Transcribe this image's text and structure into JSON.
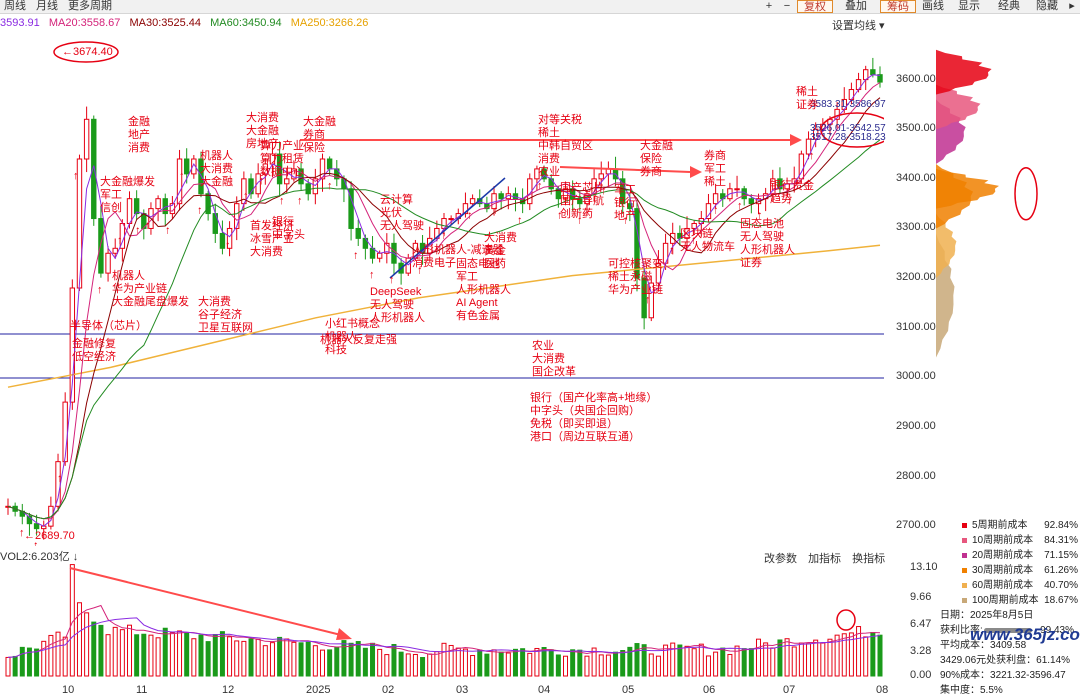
{
  "toolbar": {
    "tabs": [
      "周线",
      "月线",
      "更多周期"
    ],
    "buttons": [
      "复权",
      "叠加",
      "筹码",
      "画线",
      "显示",
      "经典",
      "隐藏"
    ],
    "highlighted": [
      "复权",
      "筹码"
    ]
  },
  "ma_legend": {
    "items": [
      {
        "text": "3593.91",
        "color": "#8a2be2"
      },
      {
        "text": "MA20:3558.67",
        "color": "#d4237a"
      },
      {
        "text": "MA30:3525.44",
        "color": "#8b0000"
      },
      {
        "text": "MA60:3450.94",
        "color": "#228b22"
      },
      {
        "text": "MA250:3266.26",
        "color": "#e6a100"
      }
    ],
    "settings_label": "设置均线"
  },
  "volume_panel": {
    "label": "VOL2:6.203亿",
    "tools": [
      "改参数",
      "加指标",
      "换指标"
    ],
    "y_ticks": [
      "13.10",
      "9.66",
      "6.47",
      "3.28",
      "0.00"
    ]
  },
  "chip_legend": [
    {
      "label": "5周期前成本",
      "pct": "92.84%",
      "color": "#e60012"
    },
    {
      "label": "10周期前成本",
      "pct": "84.31%",
      "color": "#e7577e"
    },
    {
      "label": "20周期前成本",
      "pct": "71.15%",
      "color": "#c03090"
    },
    {
      "label": "30周期前成本",
      "pct": "61.26%",
      "color": "#f08000"
    },
    {
      "label": "60周期前成本",
      "pct": "40.70%",
      "color": "#f0b050"
    },
    {
      "label": "100周期前成本",
      "pct": "18.67%",
      "color": "#c8a878"
    }
  ],
  "info_panel": {
    "date": "日期：2025年8月5日",
    "profit_ratio_label": "获利比率:",
    "profit_ratio": "99.43%",
    "avg_cost": "平均成本：3409.58",
    "profit_at": "3429.06元处获利盘：61.14%",
    "cost90": "90%成本：3221.32-3596.47",
    "concentration": "集中度：5.5%"
  },
  "watermark": "www.365jz.com",
  "chart_data": {
    "type": "candlestick",
    "title": "",
    "y_axis": {
      "ticks": [
        2700,
        2800,
        2900,
        3000,
        3100,
        3200,
        3300,
        3400,
        3500,
        3600
      ],
      "ylim": [
        2660,
        3700
      ]
    },
    "x_axis": {
      "ticks": [
        "10",
        "11",
        "12",
        "2025",
        "02",
        "03",
        "04",
        "05",
        "06",
        "07",
        "08"
      ]
    },
    "close_series": [
      2740,
      2730,
      2720,
      2705,
      2695,
      2700,
      2740,
      2830,
      2950,
      3180,
      3440,
      3520,
      3320,
      3210,
      3250,
      3260,
      3310,
      3360,
      3330,
      3300,
      3340,
      3360,
      3330,
      3350,
      3440,
      3410,
      3440,
      3370,
      3330,
      3290,
      3260,
      3300,
      3350,
      3400,
      3370,
      3410,
      3430,
      3450,
      3390,
      3400,
      3420,
      3390,
      3370,
      3400,
      3440,
      3420,
      3400,
      3380,
      3300,
      3280,
      3260,
      3240,
      3250,
      3270,
      3230,
      3210,
      3240,
      3270,
      3250,
      3280,
      3300,
      3320,
      3320,
      3330,
      3350,
      3360,
      3350,
      3340,
      3370,
      3360,
      3370,
      3360,
      3350,
      3400,
      3420,
      3400,
      3380,
      3360,
      3380,
      3360,
      3350,
      3370,
      3400,
      3410,
      3420,
      3400,
      3350,
      3340,
      3200,
      3120,
      3190,
      3230,
      3270,
      3290,
      3280,
      3300,
      3310,
      3320,
      3350,
      3370,
      3360,
      3380,
      3380,
      3360,
      3350,
      3360,
      3370,
      3400,
      3380,
      3390,
      3400,
      3450,
      3480,
      3500,
      3510,
      3520,
      3540,
      3560,
      3580,
      3600,
      3620,
      3610,
      3595
    ],
    "ma250_series": [
      2980,
      3000,
      3020,
      3045,
      3070,
      3095,
      3120,
      3140,
      3160,
      3175,
      3190,
      3205,
      3215,
      3225,
      3235,
      3245,
      3255,
      3266
    ],
    "annotations": [
      {
        "text": "3674.40",
        "kind": "high"
      },
      {
        "text": "2689.70",
        "kind": "low"
      },
      {
        "text": "3583.31-3586.97",
        "kind": "range"
      },
      {
        "text": "3526.01-3542.57",
        "kind": "range"
      },
      {
        "text": "3517.28-3518.23",
        "kind": "range"
      }
    ],
    "notes": [
      [
        "金融",
        "地产",
        "消费"
      ],
      [
        "大金融爆发",
        "军工",
        "信创"
      ],
      [
        "机器人",
        "华为产业链",
        "大金融尾盘爆发"
      ],
      [
        "半导体（芯片）"
      ],
      [
        "金融修复",
        "低空经济"
      ],
      [
        "机器人",
        "大消费",
        "大金融"
      ],
      [
        "大消费",
        "谷子经济",
        "卫星互联网"
      ],
      [
        "大消费",
        "大金融",
        "房地产"
      ],
      [
        "算力产业",
        "算力租赁",
        "数据中心"
      ],
      [
        "首发经济",
        "冰雪产业",
        "大消费"
      ],
      [
        "银行",
        "中字头"
      ],
      [
        "大金融",
        "券商",
        "保险"
      ],
      [
        "小红书概念",
        "机器人",
        "科技"
      ],
      [
        "DeepSeek",
        "无人驾驶",
        "人形机器人"
      ],
      [
        "机器人反复走强"
      ],
      [
        "云计算",
        "光伏",
        "无人驾驶"
      ],
      [
        "人形机器人-减速器",
        "消费电子"
      ],
      [
        "固态电池",
        "军工",
        "人形机器人",
        "AI Agent",
        "有色金属"
      ],
      [
        "对等关税",
        "稀土",
        "中韩自贸区",
        "消费",
        "农业"
      ],
      [
        "国产芯片",
        "国产导航",
        "创新药"
      ],
      [
        "大消费",
        "黄金",
        "医药"
      ],
      [
        "农业",
        "大消费",
        "国企改革"
      ],
      [
        "银行（国产化率高+地缘）",
        "中字头（央国企回购）",
        "免税（即买即退）",
        "港口（周边互联互通）"
      ],
      [
        "可控核聚变",
        "稀土永磁",
        "华为产业链"
      ],
      [
        "大金融",
        "保险",
        "券商"
      ],
      [
        "军工",
        "银行",
        "地产"
      ],
      [
        "区块链",
        "无人物流车"
      ],
      [
        "券商",
        "军工",
        "稀土"
      ],
      [
        "固态电池",
        "无人驾驶",
        "人形机器人",
        "证券"
      ],
      [
        "银行贵金",
        "趋势"
      ],
      [
        "稀土",
        "证券"
      ]
    ]
  }
}
